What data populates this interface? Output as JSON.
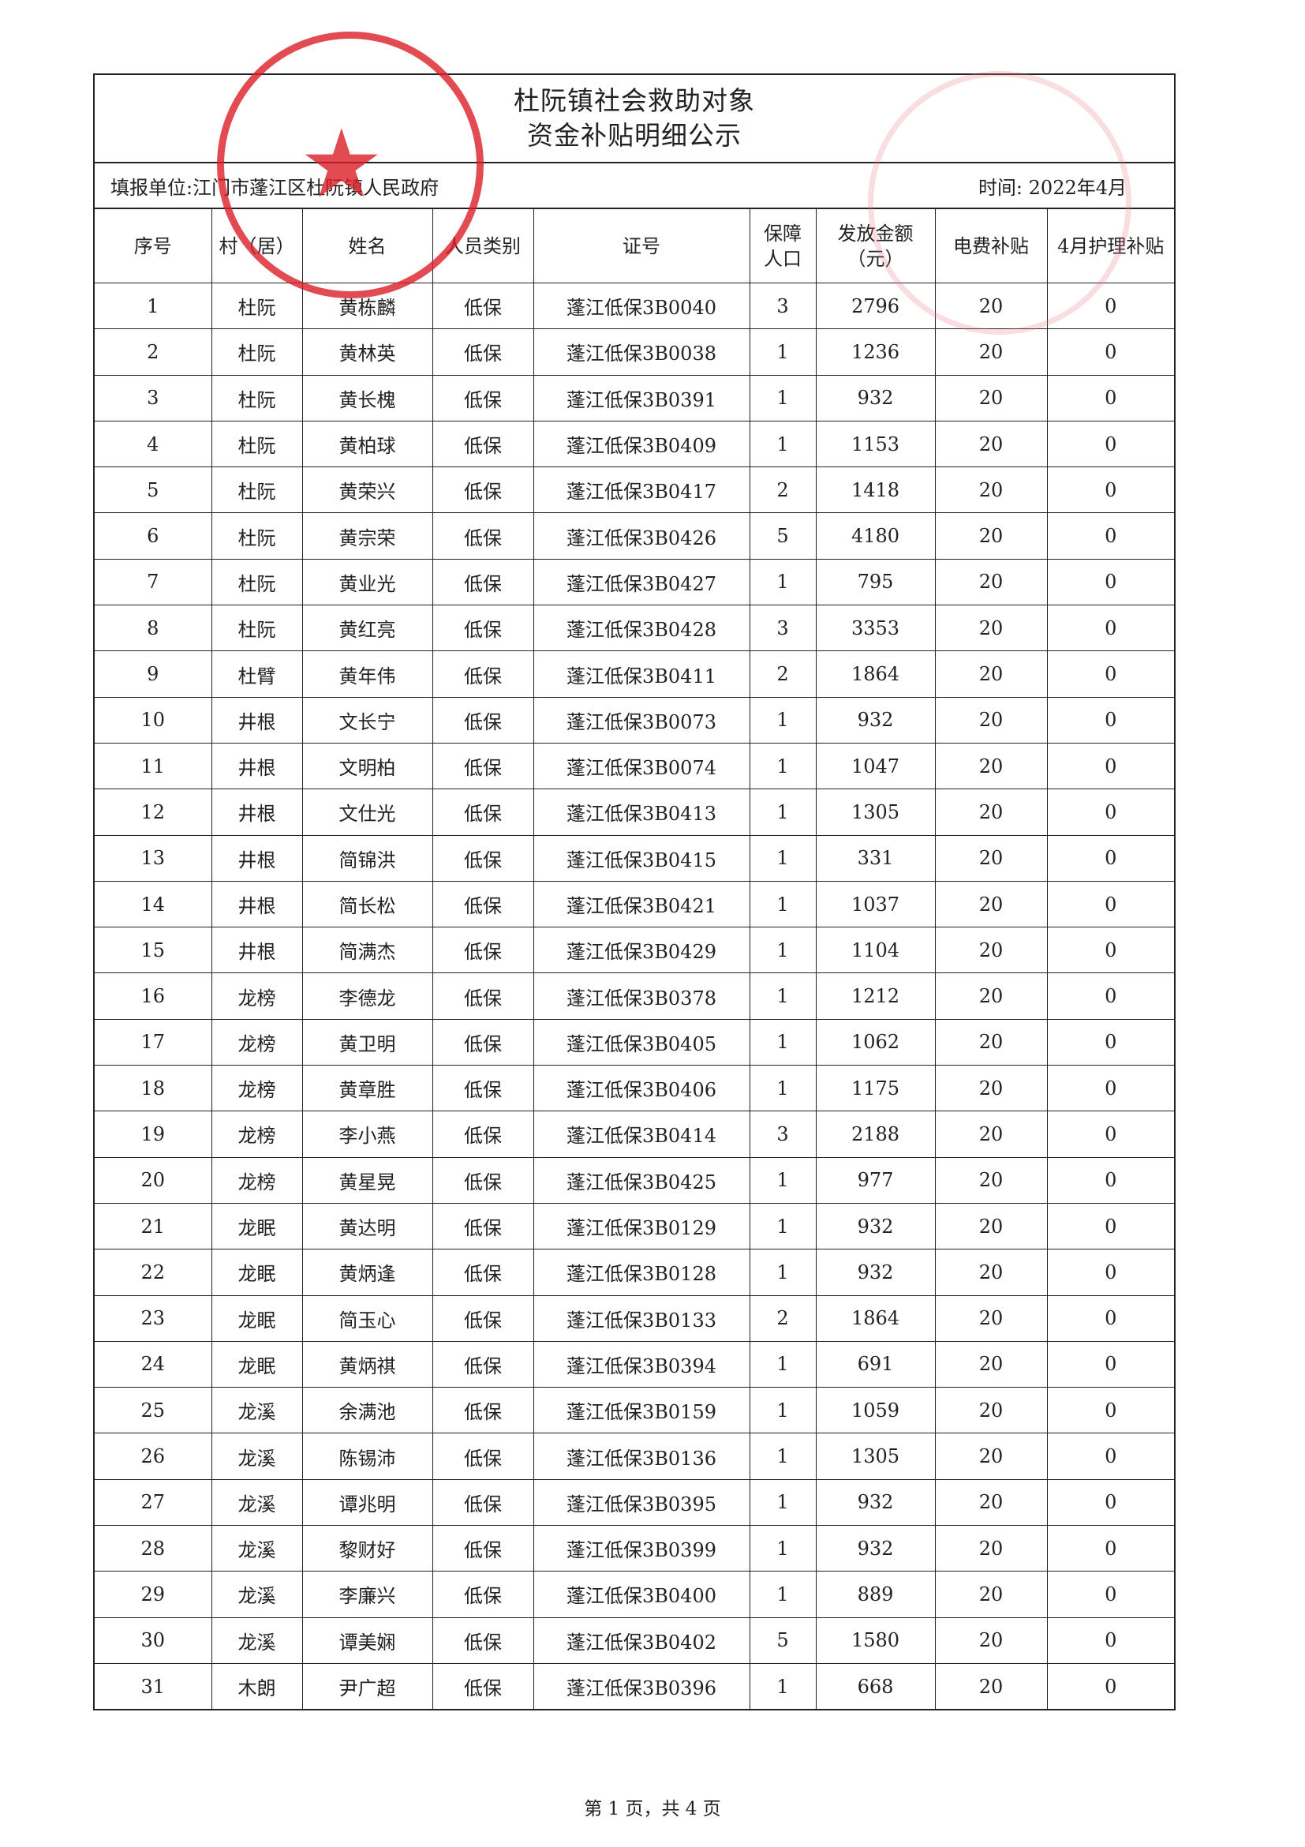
{
  "document": {
    "title_line1": "杜阮镇社会救助对象",
    "title_line2": "资金补贴明细公示",
    "unit_label": "填报单位:江门市蓬江区杜阮镇人民政府",
    "time_label": "时间:  2022年4月",
    "stamp_text": "江门市蓬江区杜阮镇人民政府",
    "stamp_color": "#dc1e28"
  },
  "table": {
    "headers": [
      "序号",
      "村（居）",
      "姓名",
      "人员类别",
      "证号",
      "保障人口",
      "发放金额（元）",
      "电费补贴",
      "4月护理补贴"
    ],
    "rows": [
      [
        "1",
        "杜阮",
        "黄栋麟",
        "低保",
        "蓬江低保3B0040",
        "3",
        "2796",
        "20",
        "0"
      ],
      [
        "2",
        "杜阮",
        "黄林英",
        "低保",
        "蓬江低保3B0038",
        "1",
        "1236",
        "20",
        "0"
      ],
      [
        "3",
        "杜阮",
        "黄长槐",
        "低保",
        "蓬江低保3B0391",
        "1",
        "932",
        "20",
        "0"
      ],
      [
        "4",
        "杜阮",
        "黄柏球",
        "低保",
        "蓬江低保3B0409",
        "1",
        "1153",
        "20",
        "0"
      ],
      [
        "5",
        "杜阮",
        "黄荣兴",
        "低保",
        "蓬江低保3B0417",
        "2",
        "1418",
        "20",
        "0"
      ],
      [
        "6",
        "杜阮",
        "黄宗荣",
        "低保",
        "蓬江低保3B0426",
        "5",
        "4180",
        "20",
        "0"
      ],
      [
        "7",
        "杜阮",
        "黄业光",
        "低保",
        "蓬江低保3B0427",
        "1",
        "795",
        "20",
        "0"
      ],
      [
        "8",
        "杜阮",
        "黄红亮",
        "低保",
        "蓬江低保3B0428",
        "3",
        "3353",
        "20",
        "0"
      ],
      [
        "9",
        "杜臂",
        "黄年伟",
        "低保",
        "蓬江低保3B0411",
        "2",
        "1864",
        "20",
        "0"
      ],
      [
        "10",
        "井根",
        "文长宁",
        "低保",
        "蓬江低保3B0073",
        "1",
        "932",
        "20",
        "0"
      ],
      [
        "11",
        "井根",
        "文明柏",
        "低保",
        "蓬江低保3B0074",
        "1",
        "1047",
        "20",
        "0"
      ],
      [
        "12",
        "井根",
        "文仕光",
        "低保",
        "蓬江低保3B0413",
        "1",
        "1305",
        "20",
        "0"
      ],
      [
        "13",
        "井根",
        "简锦洪",
        "低保",
        "蓬江低保3B0415",
        "1",
        "331",
        "20",
        "0"
      ],
      [
        "14",
        "井根",
        "简长松",
        "低保",
        "蓬江低保3B0421",
        "1",
        "1037",
        "20",
        "0"
      ],
      [
        "15",
        "井根",
        "简满杰",
        "低保",
        "蓬江低保3B0429",
        "1",
        "1104",
        "20",
        "0"
      ],
      [
        "16",
        "龙榜",
        "李德龙",
        "低保",
        "蓬江低保3B0378",
        "1",
        "1212",
        "20",
        "0"
      ],
      [
        "17",
        "龙榜",
        "黄卫明",
        "低保",
        "蓬江低保3B0405",
        "1",
        "1062",
        "20",
        "0"
      ],
      [
        "18",
        "龙榜",
        "黄章胜",
        "低保",
        "蓬江低保3B0406",
        "1",
        "1175",
        "20",
        "0"
      ],
      [
        "19",
        "龙榜",
        "李小燕",
        "低保",
        "蓬江低保3B0414",
        "3",
        "2188",
        "20",
        "0"
      ],
      [
        "20",
        "龙榜",
        "黄星晃",
        "低保",
        "蓬江低保3B0425",
        "1",
        "977",
        "20",
        "0"
      ],
      [
        "21",
        "龙眠",
        "黄达明",
        "低保",
        "蓬江低保3B0129",
        "1",
        "932",
        "20",
        "0"
      ],
      [
        "22",
        "龙眠",
        "黄炳逢",
        "低保",
        "蓬江低保3B0128",
        "1",
        "932",
        "20",
        "0"
      ],
      [
        "23",
        "龙眠",
        "简玉心",
        "低保",
        "蓬江低保3B0133",
        "2",
        "1864",
        "20",
        "0"
      ],
      [
        "24",
        "龙眠",
        "黄炳祺",
        "低保",
        "蓬江低保3B0394",
        "1",
        "691",
        "20",
        "0"
      ],
      [
        "25",
        "龙溪",
        "余满池",
        "低保",
        "蓬江低保3B0159",
        "1",
        "1059",
        "20",
        "0"
      ],
      [
        "26",
        "龙溪",
        "陈锡沛",
        "低保",
        "蓬江低保3B0136",
        "1",
        "1305",
        "20",
        "0"
      ],
      [
        "27",
        "龙溪",
        "谭兆明",
        "低保",
        "蓬江低保3B0395",
        "1",
        "932",
        "20",
        "0"
      ],
      [
        "28",
        "龙溪",
        "黎财好",
        "低保",
        "蓬江低保3B0399",
        "1",
        "932",
        "20",
        "0"
      ],
      [
        "29",
        "龙溪",
        "李廉兴",
        "低保",
        "蓬江低保3B0400",
        "1",
        "889",
        "20",
        "0"
      ],
      [
        "30",
        "龙溪",
        "谭美娴",
        "低保",
        "蓬江低保3B0402",
        "5",
        "1580",
        "20",
        "0"
      ],
      [
        "31",
        "木朗",
        "尹广超",
        "低保",
        "蓬江低保3B0396",
        "1",
        "668",
        "20",
        "0"
      ]
    ]
  },
  "footer": {
    "page_label": "第 1 页，共 4 页"
  }
}
